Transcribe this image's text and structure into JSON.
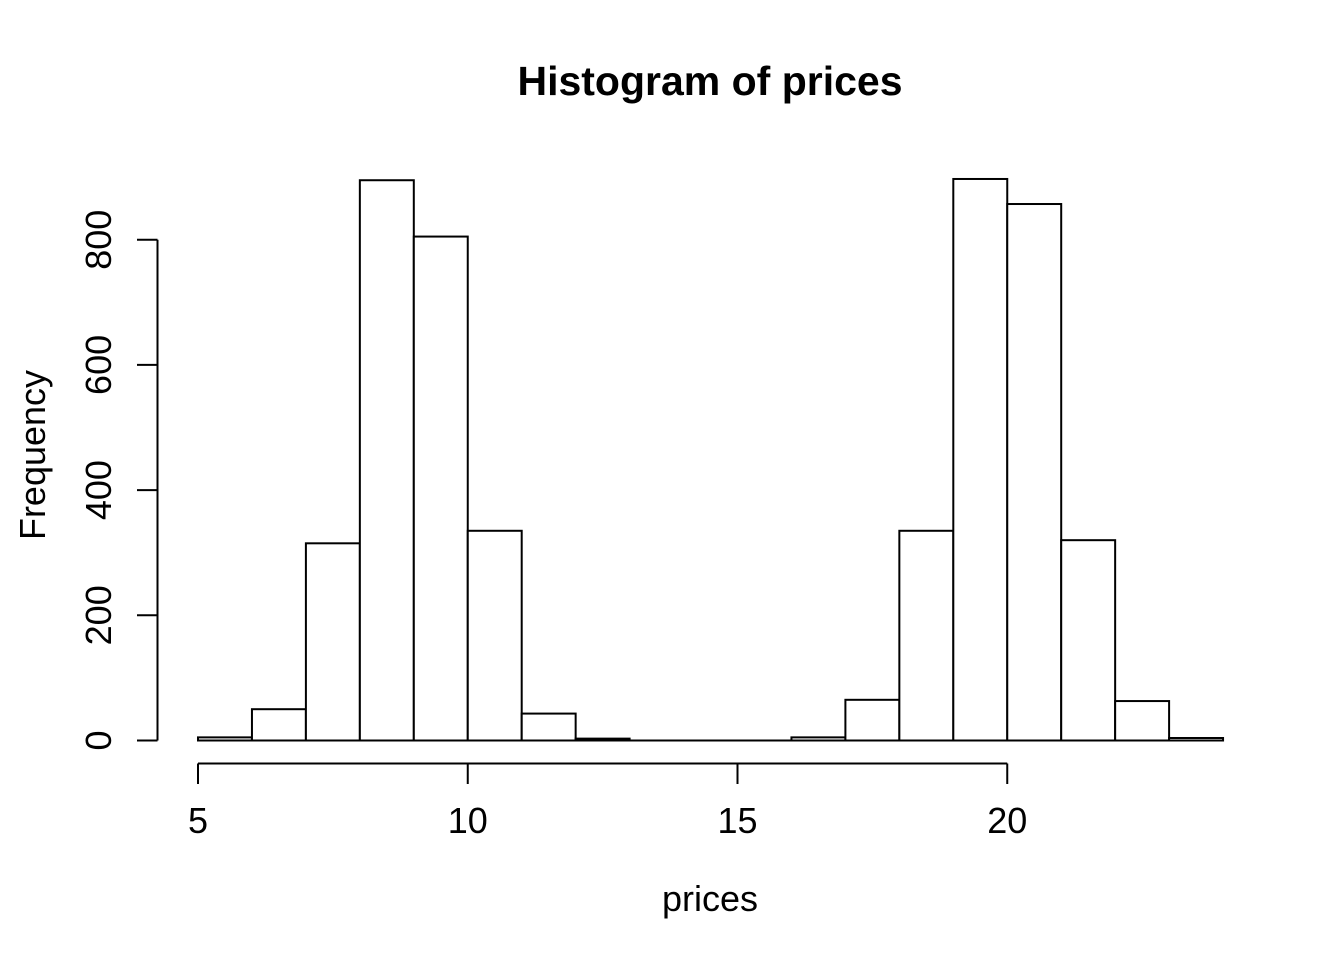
{
  "chart_data": {
    "type": "bar",
    "subtype": "histogram",
    "title": "Histogram of prices",
    "xlabel": "prices",
    "ylabel": "Frequency",
    "breaks": [
      5,
      6,
      7,
      8,
      9,
      10,
      11,
      12,
      13,
      14,
      15,
      16,
      17,
      18,
      19,
      20,
      21,
      22,
      23,
      24
    ],
    "counts": [
      5,
      50,
      315,
      895,
      805,
      335,
      43,
      3,
      0,
      0,
      0,
      5,
      65,
      335,
      897,
      857,
      320,
      63,
      4
    ],
    "x_ticks": [
      5,
      10,
      15,
      20
    ],
    "y_ticks": [
      0,
      200,
      400,
      600,
      800
    ],
    "xlim": [
      5,
      24
    ],
    "ylim": [
      0,
      900
    ],
    "x_axis_span": [
      5,
      20
    ],
    "y_axis_span": [
      0,
      800
    ],
    "grid": false,
    "legend": null,
    "colors": {
      "background": "#ffffff",
      "bar_fill": "#ffffff",
      "bar_stroke": "#000000",
      "axis": "#000000",
      "text": "#000000"
    }
  }
}
